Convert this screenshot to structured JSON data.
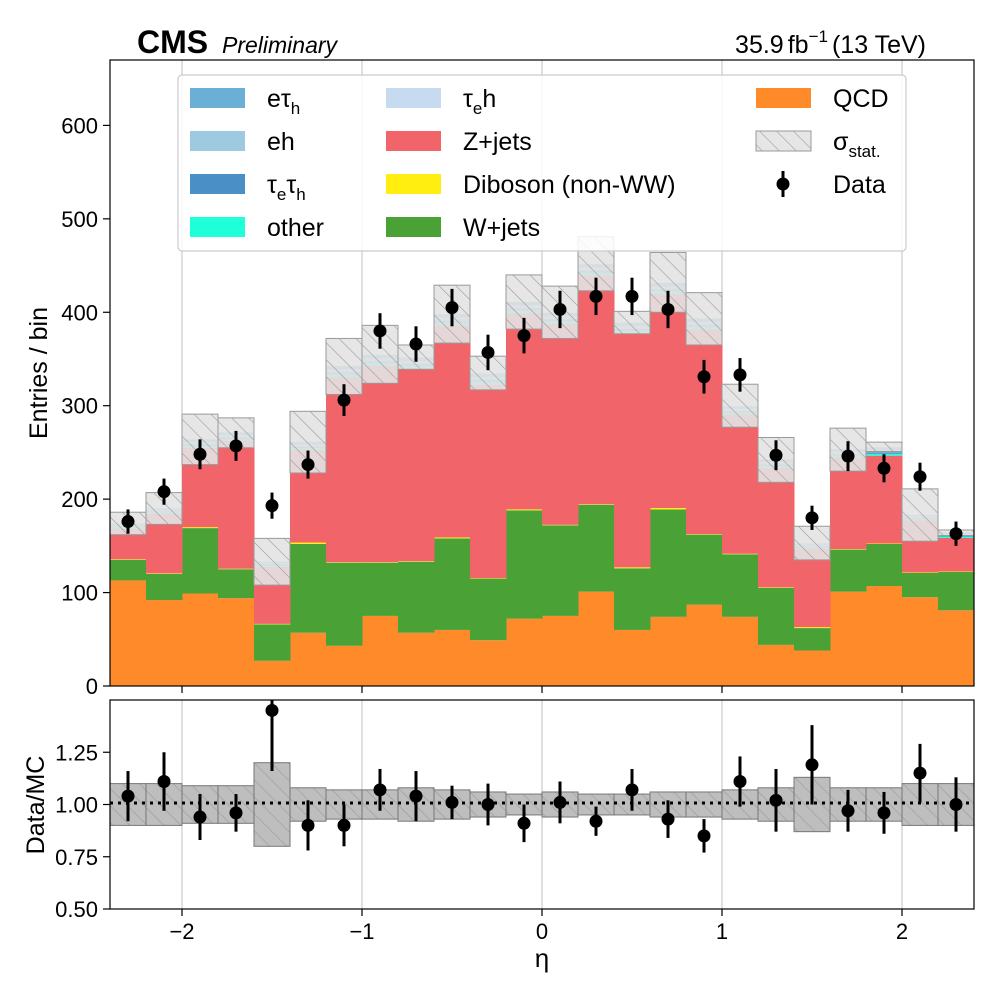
{
  "header": {
    "experiment": "CMS",
    "status": "Preliminary",
    "lumi_value": "35.9",
    "lumi_unit": "fb",
    "lumi_exp": "−1",
    "energy": "(13 TeV)"
  },
  "legend": {
    "placement": "top-center",
    "entries": [
      {
        "key": "etau_h",
        "label": "eτ",
        "sub": "h",
        "type": "fill",
        "color": "#6baed6"
      },
      {
        "key": "eh",
        "label": "eh",
        "sub": "",
        "type": "fill",
        "color": "#9ecae1"
      },
      {
        "key": "taue_tauh",
        "label": "τ",
        "sub": "e",
        "label2": "τ",
        "sub2": "h",
        "type": "fill",
        "color": "#4a8fc6"
      },
      {
        "key": "other",
        "label": "other",
        "sub": "",
        "type": "fill",
        "color": "#1fffd8"
      },
      {
        "key": "taue_h",
        "label": "τ",
        "sub": "e",
        "label2": "h",
        "sub2": "",
        "type": "fill",
        "color": "#c6dbef"
      },
      {
        "key": "zjets",
        "label": "Z+jets",
        "sub": "",
        "type": "fill",
        "color": "#f0646a"
      },
      {
        "key": "diboson",
        "label": "Diboson (non-WW)",
        "sub": "",
        "type": "fill",
        "color": "#ffee10"
      },
      {
        "key": "wjets",
        "label": "W+jets",
        "sub": "",
        "type": "fill",
        "color": "#4aa236"
      },
      {
        "key": "qcd",
        "label": "QCD",
        "sub": "",
        "type": "fill",
        "color": "#ff8a2a"
      },
      {
        "key": "stat",
        "label": "σ",
        "sub": "stat.",
        "type": "hatch",
        "color": "#e6e6e6"
      },
      {
        "key": "data",
        "label": "Data",
        "sub": "",
        "type": "marker",
        "color": "#000000"
      }
    ]
  },
  "chart_data": [
    {
      "type": "bar",
      "panel": "main",
      "stacked": true,
      "xlabel": "",
      "ylabel": "Entries / bin",
      "xlim": [
        -2.4,
        2.4
      ],
      "ylim": [
        0,
        670
      ],
      "yticks": [
        0,
        100,
        200,
        300,
        400,
        500,
        600
      ],
      "xticks": [
        -2,
        -1,
        0,
        1,
        2
      ],
      "grid": "x only",
      "bin_edges": [
        -2.4,
        -2.2,
        -2.0,
        -1.8,
        -1.6,
        -1.4,
        -1.2,
        -1.0,
        -0.8,
        -0.6,
        -0.4,
        -0.2,
        0.0,
        0.2,
        0.4,
        0.6,
        0.8,
        1.0,
        1.2,
        1.4,
        1.6,
        1.8,
        2.0,
        2.2,
        2.4
      ],
      "series": [
        {
          "name": "QCD",
          "color": "#ff8a2a",
          "values": [
            113,
            92,
            99,
            94,
            27,
            57,
            43,
            75,
            57,
            60,
            49,
            72,
            75,
            101,
            60,
            74,
            87,
            74,
            44,
            38,
            101,
            107,
            95,
            81
          ]
        },
        {
          "name": "W+jets",
          "color": "#4aa236",
          "values": [
            22,
            28,
            70,
            31,
            39,
            95,
            89,
            57,
            76,
            98,
            66,
            116,
            97,
            93,
            66,
            115,
            75,
            67,
            61,
            24,
            45,
            45,
            26,
            41
          ]
        },
        {
          "name": "Diboson (non-WW)",
          "color": "#ffee10",
          "values": [
            0.5,
            0.5,
            1,
            0.5,
            0.5,
            1.5,
            0.5,
            0.5,
            0.5,
            1,
            0.5,
            1,
            0.5,
            0.5,
            1,
            1.5,
            0.5,
            0.5,
            0.5,
            1,
            0.5,
            0.5,
            0.5,
            0.5
          ]
        },
        {
          "name": "Z+jets",
          "color": "#f0646a",
          "values": [
            33,
            64,
            85,
            137,
            61,
            99,
            198,
            210,
            206,
            227,
            207,
            210,
            215,
            245,
            250,
            229,
            219,
            149,
            128,
            84,
            98,
            94,
            56,
            36
          ]
        },
        {
          "name": "other",
          "color": "#1fffd8",
          "values": [
            1.5,
            1.5,
            2,
            2,
            1.5,
            2,
            3,
            3,
            3,
            3,
            3,
            3,
            3,
            3,
            3,
            3,
            3,
            2,
            2,
            1.5,
            2,
            2,
            1.5,
            1.5
          ]
        },
        {
          "name": "τeτh",
          "color": "#4a8fc6",
          "values": [
            1,
            1,
            1.5,
            1.5,
            1,
            1.5,
            2,
            2,
            2,
            2,
            2,
            2,
            2,
            2,
            2,
            2,
            2,
            1.5,
            1.5,
            1,
            1.5,
            1.5,
            1,
            1
          ]
        },
        {
          "name": "eh",
          "color": "#9ecae1",
          "values": [
            1,
            1,
            1.5,
            1.5,
            1,
            1.5,
            2,
            2,
            2,
            2,
            2,
            2,
            2,
            2,
            2,
            2,
            2,
            1.5,
            1.5,
            1,
            1.5,
            1.5,
            1,
            1
          ]
        },
        {
          "name": "τeh",
          "color": "#c6dbef",
          "values": [
            0.5,
            0.5,
            1,
            1,
            0.5,
            1,
            1,
            1,
            1,
            1,
            1,
            1,
            1,
            1,
            1,
            1,
            1,
            1,
            1,
            0.5,
            1,
            1,
            0.5,
            0.5
          ]
        },
        {
          "name": "eτh",
          "color": "#6baed6",
          "values": [
            1.5,
            1.5,
            3,
            3,
            1.5,
            3,
            4,
            4,
            4,
            4,
            4,
            4,
            4,
            4,
            4,
            4,
            4,
            3,
            3,
            1.5,
            3,
            3,
            1.5,
            1.5
          ]
        }
      ],
      "stat_band_total": [
        174,
        190,
        264,
        271,
        133,
        261,
        342,
        355,
        352,
        398,
        335,
        411,
        400,
        452,
        389,
        432,
        393,
        300,
        242,
        153,
        253,
        256,
        183,
        164
      ],
      "stat_band_halfwidth": [
        12,
        17,
        27,
        16,
        25,
        33,
        30,
        31,
        13,
        31,
        18,
        29,
        28,
        29,
        12,
        32,
        28,
        23,
        24,
        18,
        23,
        5,
        28,
        3
      ],
      "data_points": {
        "name": "Data",
        "x": [
          -2.3,
          -2.1,
          -1.9,
          -1.7,
          -1.5,
          -1.3,
          -1.1,
          -0.9,
          -0.7,
          -0.5,
          -0.3,
          -0.1,
          0.1,
          0.3,
          0.5,
          0.7,
          0.9,
          1.1,
          1.3,
          1.5,
          1.7,
          1.9,
          2.1,
          2.3
        ],
        "y": [
          176,
          208,
          248,
          257,
          193,
          237,
          306,
          380,
          366,
          405,
          357,
          375,
          403,
          417,
          417,
          403,
          331,
          333,
          247,
          180,
          246,
          233,
          224,
          163
        ],
        "err": [
          13,
          14,
          16,
          16,
          14,
          15,
          17,
          19,
          19,
          20,
          19,
          19,
          20,
          20,
          20,
          20,
          18,
          18,
          16,
          13,
          16,
          15,
          15,
          13
        ]
      }
    },
    {
      "type": "scatter",
      "panel": "ratio",
      "xlabel": "η",
      "ylabel": "Data/MC",
      "xlim": [
        -2.4,
        2.4
      ],
      "ylim": [
        0.5,
        1.5
      ],
      "yticks": [
        0.5,
        0.75,
        1.0,
        1.25
      ],
      "ytick_labels": [
        "0.50",
        "0.75",
        "1.00",
        "1.25"
      ],
      "xticks": [
        -2,
        -1,
        0,
        1,
        2
      ],
      "xtick_labels": [
        "−2",
        "−1",
        "0",
        "1",
        "2"
      ],
      "reference_line": 1.0,
      "band_halfwidth": [
        0.1,
        0.1,
        0.09,
        0.09,
        0.2,
        0.08,
        0.07,
        0.07,
        0.08,
        0.07,
        0.06,
        0.05,
        0.06,
        0.05,
        0.05,
        0.06,
        0.06,
        0.07,
        0.08,
        0.13,
        0.08,
        0.08,
        0.1,
        0.1
      ],
      "x": [
        -2.3,
        -2.1,
        -1.9,
        -1.7,
        -1.5,
        -1.3,
        -1.1,
        -0.9,
        -0.7,
        -0.5,
        -0.3,
        -0.1,
        0.1,
        0.3,
        0.5,
        0.7,
        0.9,
        1.1,
        1.3,
        1.5,
        1.7,
        1.9,
        2.1,
        2.3
      ],
      "y": [
        1.04,
        1.11,
        0.94,
        0.96,
        1.45,
        0.9,
        0.9,
        1.07,
        1.04,
        1.01,
        1.0,
        0.91,
        1.01,
        0.92,
        1.07,
        0.93,
        0.85,
        1.11,
        1.02,
        1.19,
        0.97,
        0.96,
        1.15,
        1.0
      ],
      "err": [
        0.12,
        0.14,
        0.11,
        0.09,
        0.29,
        0.12,
        0.1,
        0.1,
        0.12,
        0.08,
        0.1,
        0.09,
        0.1,
        0.07,
        0.1,
        0.09,
        0.08,
        0.12,
        0.15,
        0.19,
        0.1,
        0.1,
        0.14,
        0.13
      ]
    }
  ]
}
